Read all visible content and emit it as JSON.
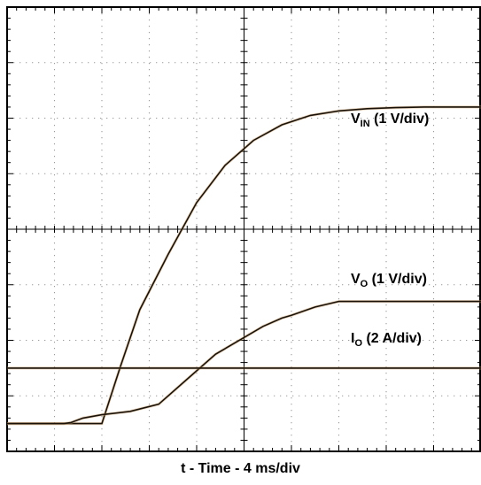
{
  "chart_data": {
    "type": "line",
    "title": "",
    "xlabel": "t - Time - 4 ms/div",
    "ylabel": "",
    "grid": true,
    "x_divisions": 10,
    "y_divisions": 8,
    "x_unit": "div",
    "y_unit": "div",
    "xlim": [
      0,
      10
    ],
    "ylim": [
      0,
      8
    ],
    "series": [
      {
        "name_main": "V",
        "name_sub": "IN",
        "name_rest": " (1 V/div)",
        "x": [
          0,
          1.0,
          2.0,
          2.4,
          2.8,
          3.4,
          4.0,
          4.6,
          5.2,
          5.8,
          6.4,
          7.0,
          7.6,
          8.2,
          8.8,
          9.4,
          10
        ],
        "y": [
          0.5,
          0.5,
          0.5,
          1.55,
          2.55,
          3.55,
          4.48,
          5.15,
          5.6,
          5.88,
          6.05,
          6.13,
          6.17,
          6.19,
          6.2,
          6.2,
          6.2
        ]
      },
      {
        "name_main": "V",
        "name_sub": "O",
        "name_rest": " (1 V/div)",
        "x": [
          0,
          0.3,
          0.6,
          0.9,
          1.2,
          1.35,
          1.6,
          2.0,
          2.6,
          3.2,
          3.8,
          4.4,
          5.4,
          5.8,
          6.0,
          6.5,
          7.0,
          8.0,
          9.0,
          10
        ],
        "y": [
          0.5,
          0.5,
          0.5,
          0.5,
          0.5,
          0.52,
          0.6,
          0.66,
          0.72,
          0.85,
          1.3,
          1.75,
          2.25,
          2.4,
          2.45,
          2.6,
          2.7,
          2.7,
          2.7,
          2.7
        ]
      },
      {
        "name_main": "I",
        "name_sub": "O",
        "name_rest": " (2 A/div)",
        "x": [
          0,
          1.0,
          2.0,
          2.6,
          3.2,
          3.8,
          4.4,
          5.0,
          5.6,
          6.2,
          6.6,
          7.0,
          7.6,
          8.0,
          9.0,
          10
        ],
        "y": [
          1.5,
          1.5,
          1.5,
          1.5,
          1.5,
          1.5,
          1.5,
          1.5,
          1.5,
          1.5,
          1.5,
          1.5,
          1.5,
          1.5,
          1.5,
          1.5
        ]
      }
    ]
  }
}
